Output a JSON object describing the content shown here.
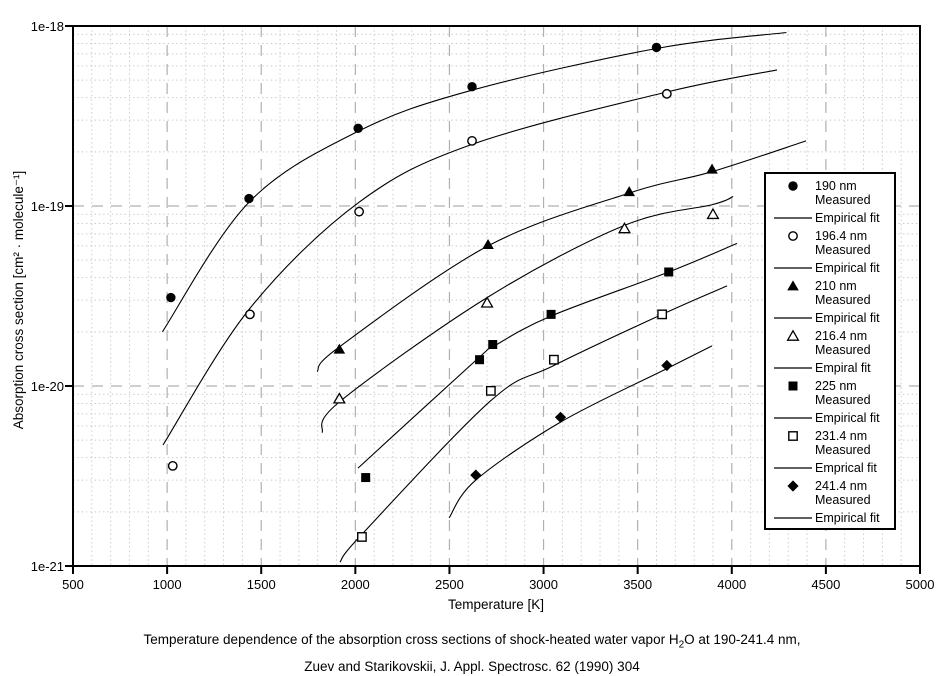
{
  "chart_data": {
    "type": "scatter",
    "title": "",
    "xlabel": "Temperature [K]",
    "ylabel": "Absorption cross section [cm² · molecule⁻¹]",
    "xlim": [
      500,
      5000
    ],
    "xticks": [
      "500",
      "1000",
      "1500",
      "2000",
      "2500",
      "3000",
      "3500",
      "4000",
      "4500",
      "5000"
    ],
    "x_minor_step": 100,
    "y_scale": "log",
    "ylim": [
      1e-21,
      1e-18
    ],
    "ytick_labels": [
      "1e-21",
      "1e-20",
      "1e-19",
      "1e-18"
    ],
    "grid": {
      "major_style": "dashed",
      "minor_style": "dotted",
      "major_color": "#b0b0b0",
      "minor_color": "#cccccc"
    },
    "legend_position": "right",
    "line_color": "#000000",
    "series": [
      {
        "label": "190 nm",
        "label_line2": "Measured",
        "marker": "filled-circle",
        "fit_label": "Empirical fit",
        "measured": [
          [
            1020,
            3.1e-20
          ],
          [
            1435,
            1.1e-19
          ],
          [
            2015,
            2.7e-19
          ],
          [
            2620,
            4.6e-19
          ],
          [
            3600,
            7.6e-19
          ]
        ],
        "fit_curve": [
          [
            975,
            2e-20
          ],
          [
            1435,
            1.05e-19
          ],
          [
            2015,
            2.6e-19
          ],
          [
            2620,
            4.4e-19
          ],
          [
            3600,
            7.5e-19
          ],
          [
            4290,
            9.2e-19
          ]
        ]
      },
      {
        "label": "196.4 nm",
        "label_line2": "Measured",
        "marker": "open-circle",
        "fit_label": "Empirical fit",
        "measured": [
          [
            1030,
            3.6e-21
          ],
          [
            1440,
            2.5e-20
          ],
          [
            2020,
            9.3e-20
          ],
          [
            2620,
            2.3e-19
          ],
          [
            3655,
            4.2e-19
          ]
        ],
        "fit_curve": [
          [
            978,
            4.7e-21
          ],
          [
            1440,
            2.7e-20
          ],
          [
            2020,
            1.05e-19
          ],
          [
            2620,
            2.2e-19
          ],
          [
            3655,
            4.3e-19
          ],
          [
            4240,
            5.7e-19
          ]
        ]
      },
      {
        "label": "210 nm",
        "label_line2": "Measured",
        "marker": "filled-triangle",
        "fit_label": "Empirical fit",
        "measured": [
          [
            1915,
            1.6e-20
          ],
          [
            2705,
            6.1e-20
          ],
          [
            3455,
            1.2e-19
          ],
          [
            3895,
            1.6e-19
          ]
        ],
        "fit_curve": [
          [
            1797,
            1.2e-20
          ],
          [
            1915,
            1.65e-20
          ],
          [
            2705,
            6e-20
          ],
          [
            3455,
            1.18e-19
          ],
          [
            3895,
            1.55e-19
          ],
          [
            4395,
            2.3e-19
          ]
        ]
      },
      {
        "label": "216.4 nm",
        "label_line2": "Measured",
        "marker": "open-triangle",
        "fit_label": "Empiral fit",
        "measured": [
          [
            1915,
            8.5e-21
          ],
          [
            2700,
            2.9e-20
          ],
          [
            3430,
            7.5e-20
          ],
          [
            3900,
            9e-20
          ]
        ],
        "fit_curve": [
          [
            1823,
            5.5e-21
          ],
          [
            1918,
            8.2e-21
          ],
          [
            2700,
            3.1e-20
          ],
          [
            3430,
            7.8e-20
          ],
          [
            3900,
            1.02e-19
          ],
          [
            4007,
            1.13e-19
          ]
        ]
      },
      {
        "label": "225 nm",
        "label_line2": "Measured",
        "marker": "filled-square",
        "fit_label": "Empirical fit",
        "measured": [
          [
            2055,
            3.1e-21
          ],
          [
            2660,
            1.4e-20
          ],
          [
            2730,
            1.7e-20
          ],
          [
            3040,
            2.5e-20
          ],
          [
            3665,
            4.3e-20
          ]
        ],
        "fit_curve": [
          [
            2014,
            3.5e-21
          ],
          [
            2660,
            1.45e-20
          ],
          [
            2730,
            1.65e-20
          ],
          [
            3040,
            2.45e-20
          ],
          [
            3665,
            4.3e-20
          ],
          [
            4028,
            6.2e-20
          ]
        ]
      },
      {
        "label": "231.4 nm",
        "label_line2": "Measured",
        "marker": "open-square",
        "fit_label": "Emprical fit",
        "measured": [
          [
            2035,
            1.45e-21
          ],
          [
            2720,
            9.4e-21
          ],
          [
            3055,
            1.4e-20
          ],
          [
            3630,
            2.5e-20
          ]
        ],
        "fit_curve": [
          [
            1918,
            1.05e-21
          ],
          [
            2035,
            1.5e-21
          ],
          [
            2720,
            8.3e-21
          ],
          [
            3055,
            1.3e-20
          ],
          [
            3630,
            2.5e-20
          ],
          [
            3975,
            3.6e-20
          ]
        ]
      },
      {
        "label": "241.4 nm",
        "label_line2": "Measured",
        "marker": "filled-diamond",
        "fit_label": "Empirical fit",
        "measured": [
          [
            2640,
            3.2e-21
          ],
          [
            3090,
            6.7e-21
          ],
          [
            3655,
            1.3e-20
          ]
        ],
        "fit_curve": [
          [
            2498,
            1.85e-21
          ],
          [
            2640,
            3e-21
          ],
          [
            3090,
            6.3e-21
          ],
          [
            3655,
            1.25e-20
          ],
          [
            3895,
            1.67e-20
          ]
        ]
      }
    ]
  },
  "caption": {
    "line1_pre": "Temperature dependence of the absorption cross sections of shock-heated water vapor H",
    "line1_sub": "2",
    "line1_post": "O at 190-241.4 nm,",
    "line2": "Zuev and Starikovskii, J. Appl. Spectrosc. 62 (1990) 304"
  }
}
